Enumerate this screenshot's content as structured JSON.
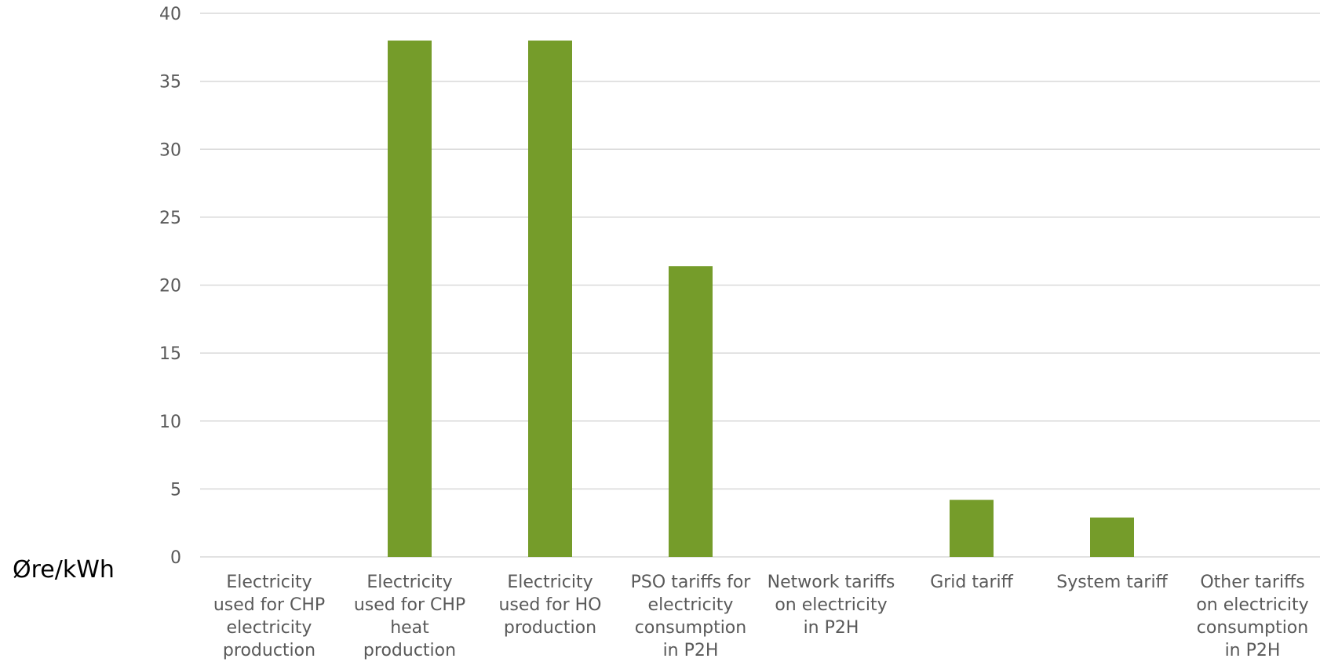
{
  "chart_data": {
    "type": "bar",
    "title": "",
    "xlabel": "",
    "ylabel": "Øre/kWh",
    "ylim": [
      0,
      40
    ],
    "yticks": [
      "0",
      "5",
      "10",
      "15",
      "20",
      "25",
      "30",
      "35",
      "40"
    ],
    "grid": true,
    "bar_color": "#759c2a",
    "categories": [
      [
        "Electricity",
        "used for CHP",
        "electricity",
        "production"
      ],
      [
        "Electricity",
        "used for CHP",
        "heat",
        "production"
      ],
      [
        "Electricity",
        "used for HO",
        "production"
      ],
      [
        "PSO tariffs for",
        "electricity",
        "consumption",
        "in P2H"
      ],
      [
        "Network tariffs",
        "on electricity",
        "in P2H"
      ],
      [
        "Grid tariff"
      ],
      [
        "System tariff"
      ],
      [
        "Other tariffs",
        "on electricity",
        "consumption",
        "in P2H"
      ]
    ],
    "values": [
      0,
      38,
      38,
      21.4,
      0,
      4.2,
      2.9,
      0
    ]
  }
}
